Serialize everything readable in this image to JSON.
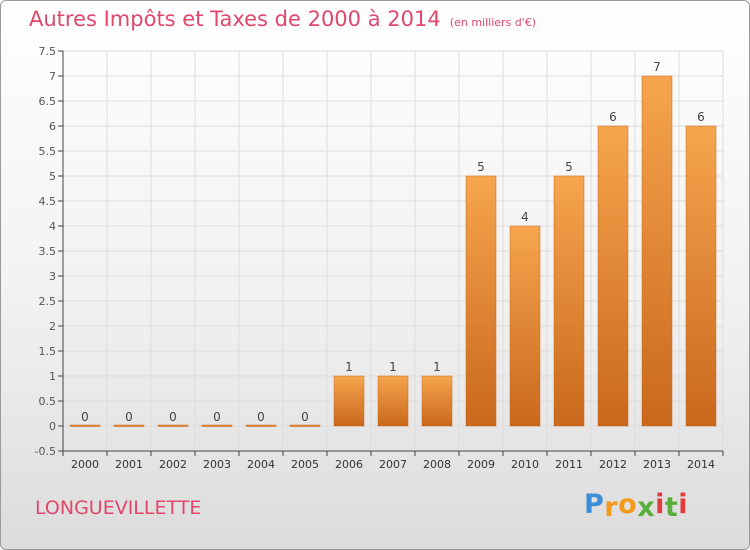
{
  "header": {
    "title": "Autres Impôts et Taxes de 2000 à 2014",
    "unit": "(en milliers d'€)"
  },
  "footer": {
    "commune": "LONGUEVILLETTE",
    "logo_letters": [
      "P",
      "r",
      "o",
      "x",
      "i",
      "t",
      "i"
    ],
    "logo_colors": [
      "#3a8fd6",
      "#f29a1d",
      "#f29a1d",
      "#5aaf3a",
      "#e23b3b",
      "#5aaf3a",
      "#e23b3b"
    ]
  },
  "chart_data": {
    "type": "bar",
    "categories": [
      "2000",
      "2001",
      "2002",
      "2003",
      "2004",
      "2005",
      "2006",
      "2007",
      "2008",
      "2009",
      "2010",
      "2011",
      "2012",
      "2013",
      "2014"
    ],
    "values": [
      0,
      0,
      0,
      0,
      0,
      0,
      1,
      1,
      1,
      5,
      4,
      5,
      6,
      7,
      6
    ],
    "data_labels": [
      "0",
      "0",
      "0",
      "0",
      "0",
      "0",
      "1",
      "1",
      "1",
      "5",
      "4",
      "5",
      "6",
      "7",
      "6"
    ],
    "y_ticks": [
      "-0.5",
      "0",
      "0.5",
      "1",
      "1.5",
      "2",
      "2.5",
      "3",
      "3.5",
      "4",
      "4.5",
      "5",
      "5.5",
      "6",
      "6.5",
      "7",
      "7.5"
    ],
    "ylim": [
      -0.5,
      7.5
    ],
    "grid": true,
    "bar_color_light": "#f6a54e",
    "bar_color_dark": "#c9681c",
    "title": "Autres Impôts et Taxes de 2000 à 2014",
    "xlabel": "",
    "ylabel": ""
  }
}
